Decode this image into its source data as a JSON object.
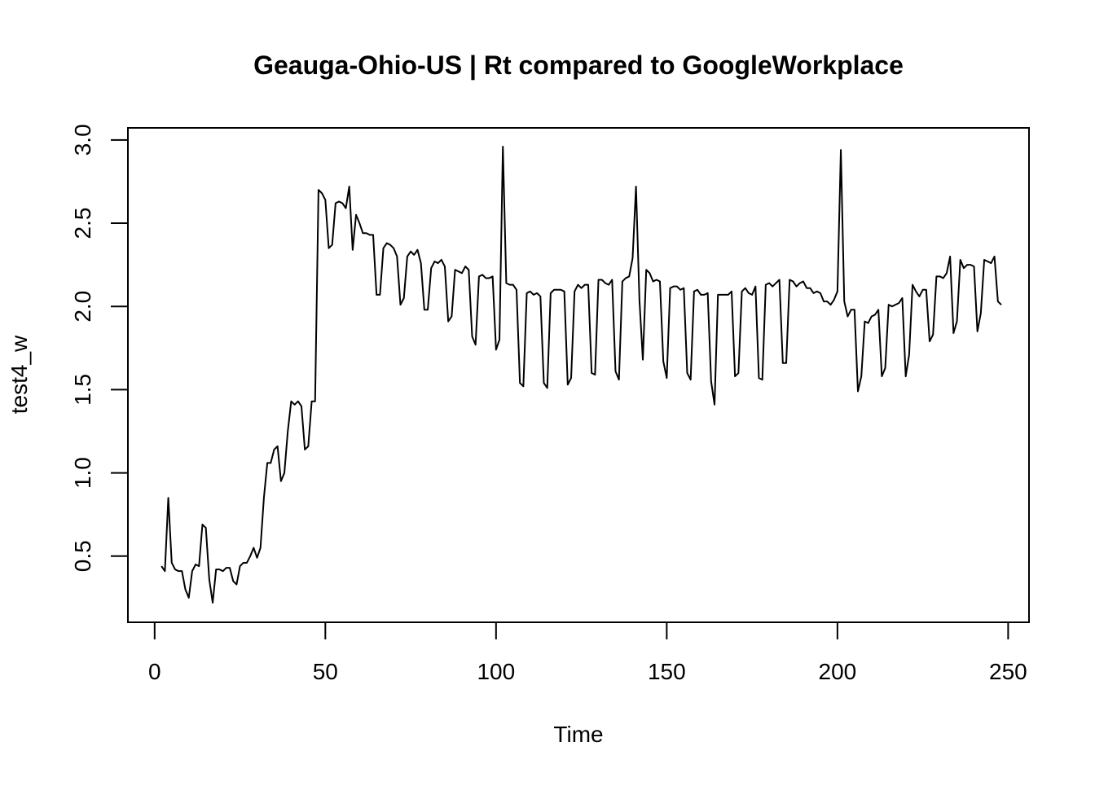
{
  "chart_data": {
    "type": "line",
    "title": "Geauga-Ohio-US | Rt compared to GoogleWorkplace",
    "xlabel": "Time",
    "ylabel": "test4_w",
    "xlim": [
      1,
      248
    ],
    "ylim": [
      0.22,
      2.96
    ],
    "x_ticks": [
      0,
      50,
      100,
      150,
      200,
      250
    ],
    "y_ticks": [
      0.5,
      1.0,
      1.5,
      2.0,
      2.5,
      3.0
    ],
    "x_tick_labels": [
      "0",
      "50",
      "100",
      "150",
      "200",
      "250"
    ],
    "y_tick_labels": [
      "0.5",
      "1.0",
      "1.5",
      "2.0",
      "2.5",
      "3.0"
    ],
    "grid": false,
    "legend": "none",
    "line_color": "#000000",
    "series": [
      {
        "x_start": 2,
        "x_step": 1,
        "values": [
          0.44,
          0.41,
          0.85,
          0.46,
          0.42,
          0.41,
          0.41,
          0.3,
          0.25,
          0.41,
          0.45,
          0.44,
          0.69,
          0.67,
          0.36,
          0.22,
          0.42,
          0.42,
          0.41,
          0.43,
          0.43,
          0.35,
          0.33,
          0.44,
          0.46,
          0.46,
          0.5,
          0.55,
          0.49,
          0.55,
          0.85,
          1.06,
          1.06,
          1.14,
          1.16,
          0.95,
          1.0,
          1.25,
          1.43,
          1.41,
          1.43,
          1.4,
          1.14,
          1.16,
          1.43,
          1.43,
          2.7,
          2.68,
          2.64,
          2.35,
          2.37,
          2.62,
          2.63,
          2.62,
          2.59,
          2.72,
          2.34,
          2.55,
          2.5,
          2.44,
          2.44,
          2.43,
          2.43,
          2.07,
          2.07,
          2.35,
          2.38,
          2.37,
          2.35,
          2.3,
          2.01,
          2.05,
          2.3,
          2.33,
          2.31,
          2.34,
          2.26,
          1.98,
          1.98,
          2.23,
          2.27,
          2.26,
          2.28,
          2.24,
          1.91,
          1.94,
          2.22,
          2.21,
          2.2,
          2.24,
          2.22,
          1.82,
          1.77,
          2.18,
          2.19,
          2.17,
          2.17,
          2.18,
          1.74,
          1.8,
          2.96,
          2.14,
          2.13,
          2.13,
          2.1,
          1.54,
          1.52,
          2.08,
          2.09,
          2.07,
          2.08,
          2.06,
          1.54,
          1.51,
          2.08,
          2.1,
          2.1,
          2.1,
          2.09,
          1.53,
          1.57,
          2.09,
          2.13,
          2.11,
          2.13,
          2.13,
          1.6,
          1.59,
          2.16,
          2.16,
          2.14,
          2.13,
          2.16,
          1.61,
          1.56,
          2.15,
          2.17,
          2.18,
          2.29,
          2.72,
          2.04,
          1.68,
          2.22,
          2.2,
          2.15,
          2.16,
          2.15,
          1.67,
          1.57,
          2.11,
          2.12,
          2.12,
          2.1,
          2.11,
          1.6,
          1.56,
          2.09,
          2.1,
          2.07,
          2.07,
          2.08,
          1.55,
          1.41,
          2.07,
          2.07,
          2.07,
          2.07,
          2.09,
          1.58,
          1.6,
          2.09,
          2.11,
          2.08,
          2.07,
          2.12,
          1.57,
          1.56,
          2.13,
          2.14,
          2.12,
          2.14,
          2.16,
          1.66,
          1.66,
          2.16,
          2.15,
          2.12,
          2.14,
          2.15,
          2.11,
          2.11,
          2.08,
          2.09,
          2.08,
          2.03,
          2.03,
          2.01,
          2.04,
          2.09,
          2.94,
          2.03,
          1.94,
          1.98,
          1.98,
          1.49,
          1.58,
          1.91,
          1.9,
          1.94,
          1.95,
          1.98,
          1.58,
          1.63,
          2.01,
          2.0,
          2.01,
          2.02,
          2.05,
          1.58,
          1.71,
          2.13,
          2.09,
          2.06,
          2.1,
          2.1,
          1.79,
          1.83,
          2.18,
          2.18,
          2.17,
          2.2,
          2.3,
          1.84,
          1.91,
          2.28,
          2.23,
          2.25,
          2.25,
          2.24,
          1.85,
          1.96,
          2.28,
          2.27,
          2.26,
          2.3,
          2.03,
          2.01
        ]
      }
    ]
  }
}
